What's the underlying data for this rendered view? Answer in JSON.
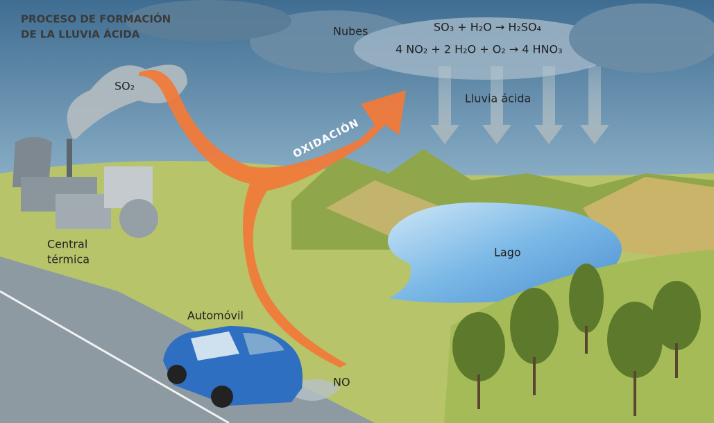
{
  "title": {
    "lines": [
      "PROCESO DE FORMACIÓN",
      "DE LA LLUVIA ÁCIDA"
    ]
  },
  "labels": {
    "clouds": "Nubes",
    "rain": "Lluvia ácida",
    "oxidation": "OXIDACIÓN",
    "so2": "SO₂",
    "no": "NO",
    "plant": [
      "Central",
      "térmica"
    ],
    "lake": "Lago",
    "car": "Automóvil"
  },
  "equations": [
    "SO₃ + H₂O → H₂SO₄",
    "4 NO₂ + 2 H₂O + O₂ → 4 HNO₃"
  ]
}
